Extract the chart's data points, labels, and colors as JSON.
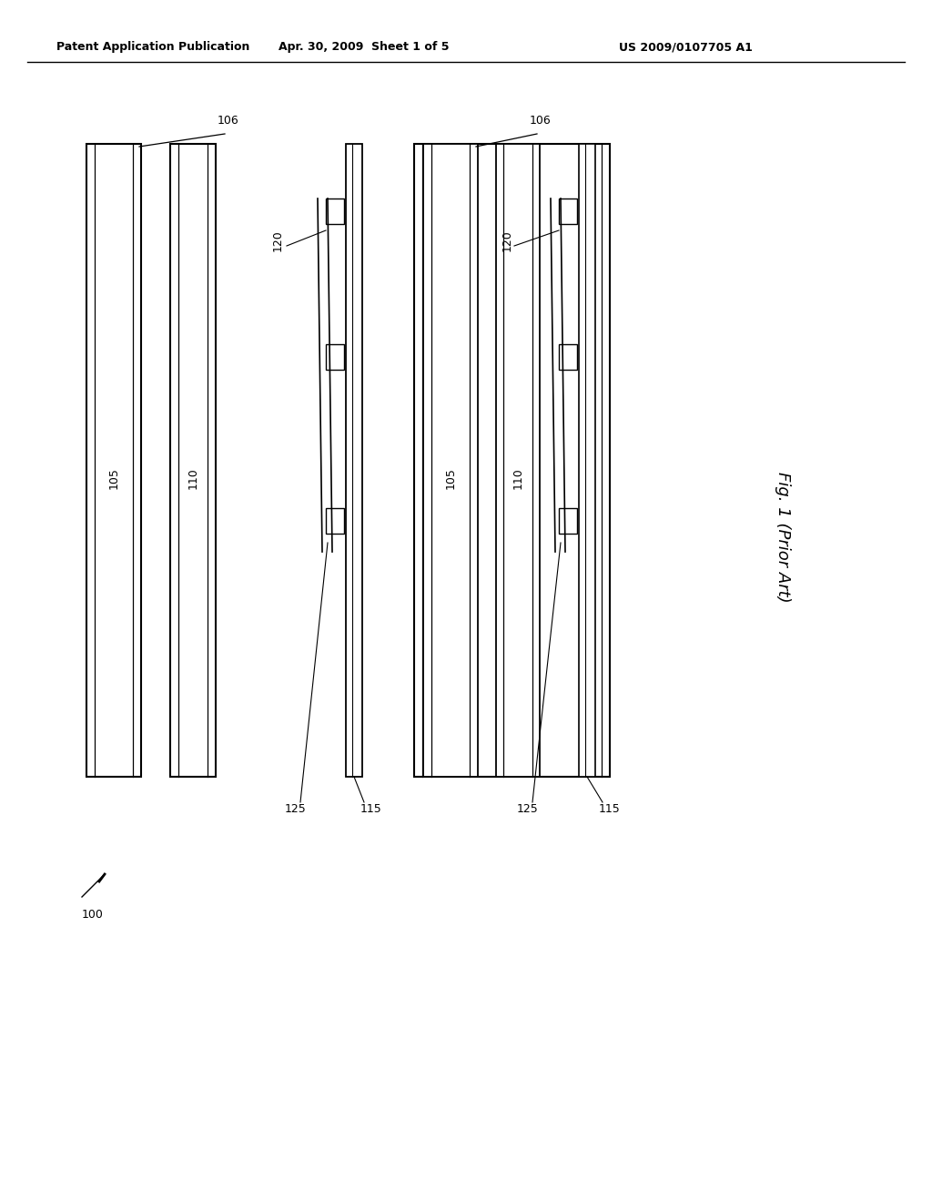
{
  "header_left": "Patent Application Publication",
  "header_center": "Apr. 30, 2009  Sheet 1 of 5",
  "header_right": "US 2009/0107705 A1",
  "fig_label": "Fig. 1 (Prior Art)",
  "ref_100": "100",
  "ref_105": "105",
  "ref_106": "106",
  "ref_110": "110",
  "ref_115": "115",
  "ref_120": "120",
  "ref_125": "125",
  "bg_color": "#ffffff",
  "line_color": "#000000",
  "text_color": "#000000"
}
